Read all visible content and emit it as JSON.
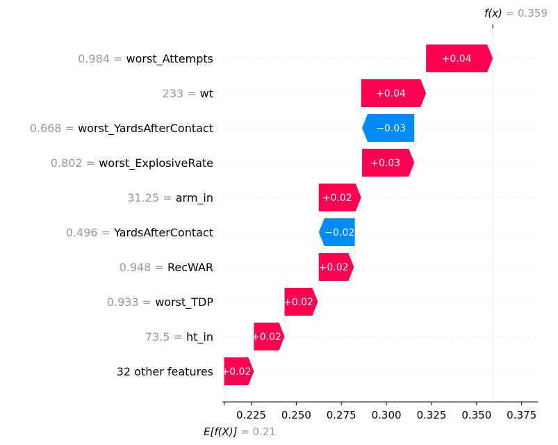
{
  "chart_data": {
    "type": "waterfall",
    "base_value": 0.21,
    "output_value": 0.359,
    "base_label": "E[f(X)]",
    "base_value_label": "0.21",
    "output_label": "f(x)",
    "output_value_label": "0.359",
    "xlim": [
      0.209,
      0.384
    ],
    "xticks": [
      0.225,
      0.25,
      0.275,
      0.3,
      0.325,
      0.35,
      0.375
    ],
    "xtick_labels": [
      "0.225",
      "0.250",
      "0.275",
      "0.300",
      "0.325",
      "0.350",
      "0.375"
    ],
    "features": [
      {
        "value": "0.984",
        "name": "worst_Attempts",
        "start": 0.322,
        "end": 0.359,
        "label": "+0.04"
      },
      {
        "value": "233",
        "name": "wt",
        "start": 0.286,
        "end": 0.322,
        "label": "+0.04"
      },
      {
        "value": "0.668",
        "name": "worst_YardsAfterContact",
        "start": 0.3155,
        "end": 0.2865,
        "label": "−0.03"
      },
      {
        "value": "0.802",
        "name": "worst_ExplosiveRate",
        "start": 0.2865,
        "end": 0.3155,
        "label": "+0.03"
      },
      {
        "value": "31.25",
        "name": "arm_in",
        "start": 0.2625,
        "end": 0.286,
        "label": "+0.02"
      },
      {
        "value": "0.496",
        "name": "YardsAfterContact",
        "start": 0.2825,
        "end": 0.2625,
        "label": "−0.02"
      },
      {
        "value": "0.948",
        "name": "RecWAR",
        "start": 0.2625,
        "end": 0.282,
        "label": "+0.02"
      },
      {
        "value": "0.933",
        "name": "worst_TDP",
        "start": 0.2435,
        "end": 0.262,
        "label": "+0.02"
      },
      {
        "value": "73.5",
        "name": "ht_in",
        "start": 0.2265,
        "end": 0.2435,
        "label": "+0.02"
      },
      {
        "value": "",
        "name": "32 other features",
        "start": 0.21,
        "end": 0.2265,
        "label": "+0.02"
      }
    ],
    "colors": {
      "positive": "#ff0051",
      "negative": "#008bfb",
      "grid": "#dddddd",
      "text_muted": "#999999"
    }
  }
}
